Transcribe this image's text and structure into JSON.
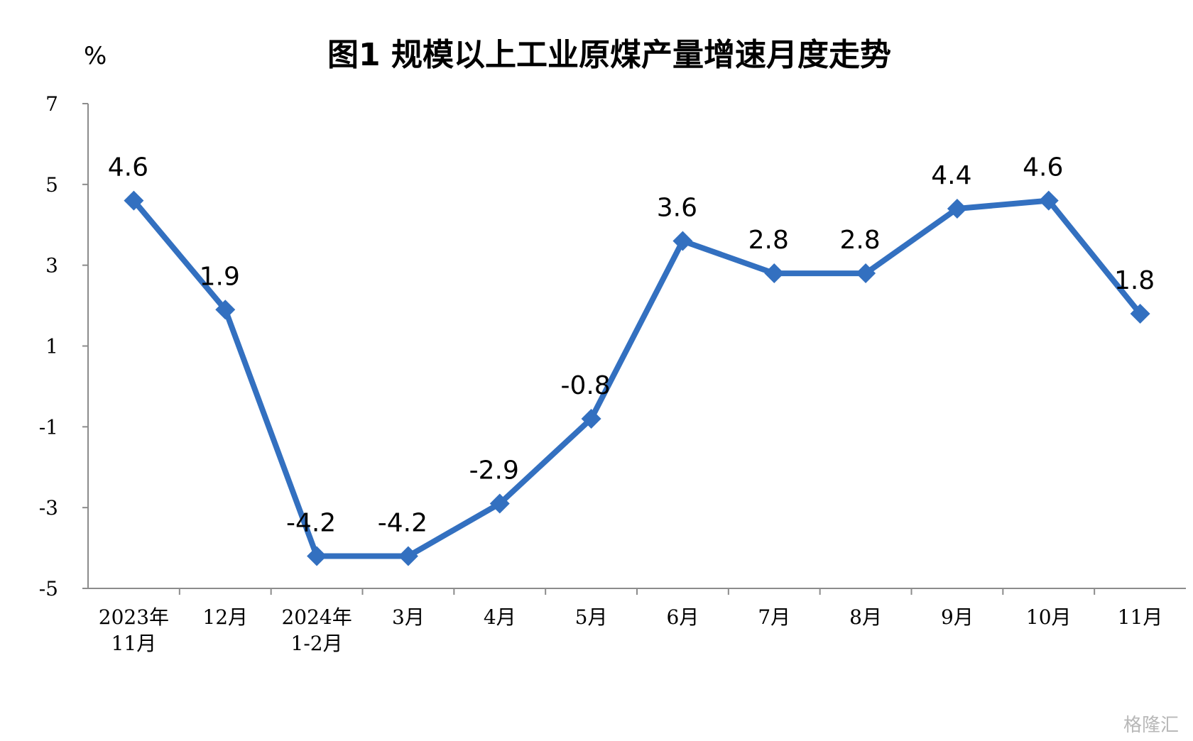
{
  "chart_data": {
    "type": "line",
    "title": "图1  规模以上工业原煤产量增速月度走势",
    "ylabel": "%",
    "xlabel": "",
    "categories": [
      [
        "2023年",
        "11月"
      ],
      [
        "12月"
      ],
      [
        "2024年",
        "1-2月"
      ],
      [
        "3月"
      ],
      [
        "4月"
      ],
      [
        "5月"
      ],
      [
        "6月"
      ],
      [
        "7月"
      ],
      [
        "8月"
      ],
      [
        "9月"
      ],
      [
        "10月"
      ],
      [
        "11月"
      ]
    ],
    "values": [
      4.6,
      1.9,
      -4.2,
      -4.2,
      -2.9,
      -0.8,
      3.6,
      2.8,
      2.8,
      4.4,
      4.6,
      1.8
    ],
    "data_labels": [
      "4.6",
      "1.9",
      "-4.2",
      "-4.2",
      "-2.9",
      "-0.8",
      "3.6",
      "2.8",
      "2.8",
      "4.4",
      "4.6",
      "1.8"
    ],
    "ylim": [
      -5,
      7
    ],
    "yticks": [
      7,
      5,
      3,
      1,
      -1,
      -3,
      -5
    ],
    "grid": false,
    "legend": "none",
    "line_color": "#3370C0",
    "marker": "diamond"
  },
  "watermark": "格隆汇"
}
